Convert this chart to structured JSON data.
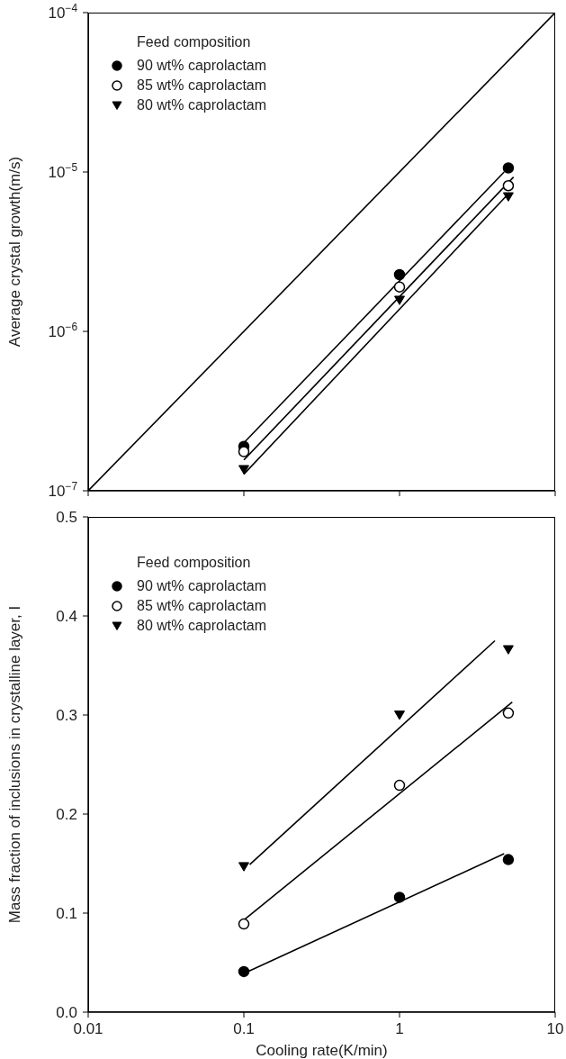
{
  "chart_data": [
    {
      "type": "scatter",
      "ylabel": "Average crystal growth(m/s)",
      "legend_title": "Feed composition",
      "legend": "top left",
      "log": "xy",
      "tick_labels": "y",
      "grid": false,
      "xlim": [
        0.01,
        10
      ],
      "xticks": [
        {
          "value": 0.01,
          "label": null
        },
        {
          "value": 0.1,
          "label": null
        },
        {
          "value": 1,
          "label": null
        },
        {
          "value": 10,
          "label": null
        }
      ],
      "ylim": [
        1e-07,
        0.0001
      ],
      "yticks": [
        {
          "value": 1e-07,
          "label": "10$^{−7}$"
        },
        {
          "value": 1e-06,
          "label": "10$^{−6}$"
        },
        {
          "value": 1e-05,
          "label": "10$^{−5}$"
        },
        {
          "value": 0.0001,
          "label": "10$^{−4}$"
        }
      ],
      "series": [
        {
          "name": "90 wt% caprolactam",
          "color": "#000000",
          "marker": "circle",
          "x": [
            0.1,
            1,
            5
          ],
          "values": [
            1.9e-07,
            2.27e-06,
            1.06e-05
          ]
        },
        {
          "name": "85 wt% caprolactam",
          "color": "#ffffff",
          "marker": "circle",
          "x": [
            0.1,
            1,
            5
          ],
          "values": [
            1.76e-07,
            1.9e-06,
            8.2e-06
          ]
        },
        {
          "name": "80 wt% caprolactam",
          "color": "#000000",
          "marker": "triangle",
          "x": [
            0.1,
            1,
            5
          ],
          "values": [
            1.36e-07,
            1.57e-06,
            7e-06
          ]
        },
        {
          "type": "line",
          "color": "#000000",
          "x": [
            0.1,
            4.7
          ],
          "values": [
            2e-07,
            1e-05
          ]
        },
        {
          "type": "line",
          "color": "#000000",
          "x": [
            0.1,
            5.4
          ],
          "values": [
            1.56e-07,
            9.3e-06
          ]
        },
        {
          "type": "line",
          "color": "#000000",
          "x": [
            0.1,
            5.0
          ],
          "values": [
            1.27e-07,
            7.3e-06
          ]
        },
        {
          "type": "line",
          "color": "#000000",
          "x": [
            0.01,
            10
          ],
          "values": [
            1e-07,
            0.0001
          ]
        }
      ]
    },
    {
      "type": "scatter",
      "xlabel": "Cooling rate(K/min)",
      "ylabel": "Mass fraction of inclusions in crystalline layer, I",
      "legend_title": "Feed composition",
      "legend": "top left",
      "log": "x",
      "grid": false,
      "xlim": [
        0.01,
        10
      ],
      "xticks": [
        0.01,
        0.1,
        1,
        10
      ],
      "ylim": [
        0,
        0.5
      ],
      "yticks": [
        {
          "value": 0,
          "label": "0.0"
        },
        0.1,
        0.2,
        0.3,
        0.4,
        0.5
      ],
      "series": [
        {
          "name": "90 wt% caprolactam",
          "color": "#000000",
          "marker": "circle",
          "x": [
            0.1,
            1,
            5
          ],
          "values": [
            0.041,
            0.116,
            0.154
          ]
        },
        {
          "name": "85 wt% caprolactam",
          "color": "#ffffff",
          "marker": "circle",
          "x": [
            0.1,
            1,
            5
          ],
          "values": [
            0.089,
            0.229,
            0.302
          ]
        },
        {
          "name": "80 wt% caprolactam",
          "color": "#000000",
          "marker": "triangle",
          "x": [
            0.1,
            1,
            5
          ],
          "values": [
            0.147,
            0.3,
            0.366
          ]
        },
        {
          "type": "line",
          "color": "#000000",
          "x": [
            0.1,
            4.7
          ],
          "values": [
            0.039,
            0.16
          ]
        },
        {
          "type": "line",
          "color": "#000000",
          "x": [
            0.1,
            5.3
          ],
          "values": [
            0.093,
            0.313
          ]
        },
        {
          "type": "line",
          "color": "#000000",
          "x": [
            0.109,
            4.1
          ],
          "values": [
            0.149,
            0.375
          ]
        }
      ]
    }
  ]
}
